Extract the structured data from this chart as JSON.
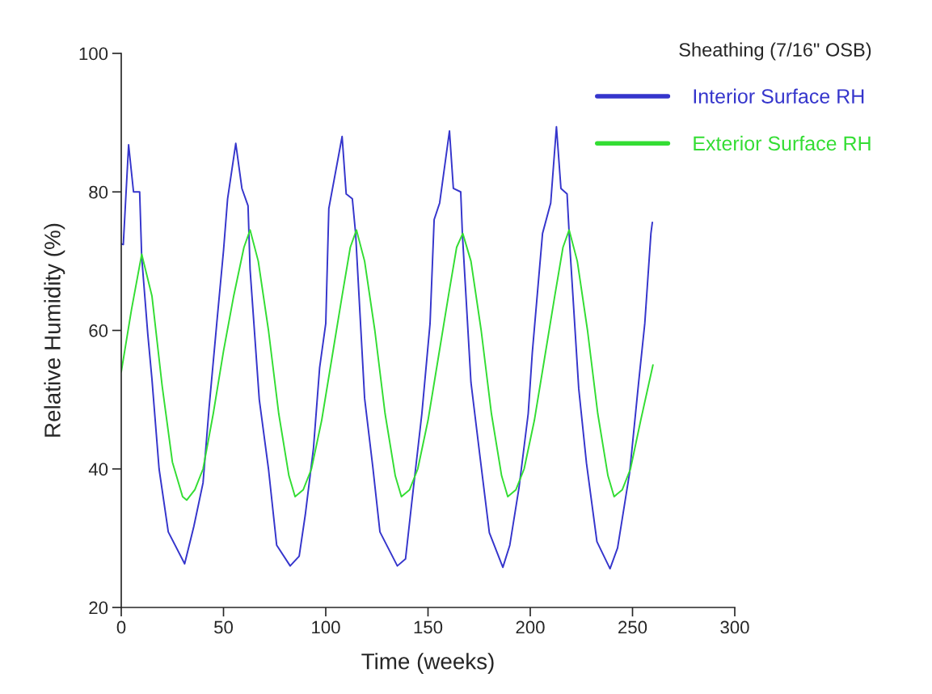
{
  "chart_data": {
    "type": "line",
    "xlabel": "Time (weeks)",
    "ylabel": "Relative Humidity (%)",
    "legend_title": "Sheathing (7/16\" OSB)",
    "xlim": [
      0,
      300
    ],
    "xticks": [
      0,
      50,
      100,
      150,
      200,
      250,
      300
    ],
    "ylim": [
      20,
      100
    ],
    "yticks": [
      20,
      40,
      60,
      80,
      100
    ],
    "grid": false,
    "legend": "top right",
    "series": [
      {
        "name": "Interior Surface RH",
        "color": "#3535cc",
        "x": [
          0,
          1,
          3.6,
          6,
          9,
          10,
          13,
          15,
          18.5,
          23,
          31,
          35.5,
          40,
          43,
          46.7,
          50,
          52,
          56,
          59,
          62,
          63,
          67.5,
          72,
          76,
          82.6,
          87,
          90,
          94,
          97,
          100,
          101.5,
          108,
          110,
          113,
          114.6,
          119,
          123,
          126.5,
          135,
          139,
          142,
          147,
          151,
          153,
          155.7,
          160.5,
          162.4,
          166,
          166.8,
          171,
          175.5,
          180,
          186.6,
          190,
          194.5,
          199,
          201,
          206,
          210,
          212.8,
          215,
          218,
          219.4,
          223.7,
          227.5,
          232.6,
          239,
          242.7,
          248.6,
          253,
          256,
          259,
          259.7
        ],
        "values": [
          72.5,
          72.4,
          86.8,
          80,
          80,
          70.6,
          59.4,
          53,
          40,
          30.9,
          26.3,
          31.7,
          38,
          49,
          61,
          71.5,
          79,
          87,
          80.5,
          78,
          68.8,
          50,
          40,
          29,
          26,
          27.4,
          33.4,
          43,
          54.6,
          61,
          77.6,
          88,
          79.7,
          79,
          74,
          50.2,
          40.3,
          30.9,
          26,
          27,
          35,
          48,
          61,
          76,
          78.4,
          88.8,
          80.5,
          80,
          74,
          52.5,
          41.6,
          30.8,
          25.8,
          29,
          37.3,
          48,
          56.8,
          74,
          78.4,
          89.4,
          80.5,
          79.7,
          71.9,
          51.6,
          40.8,
          29.5,
          25.6,
          28.6,
          39.5,
          52.5,
          61,
          74,
          75.6
        ]
      },
      {
        "name": "Exterior Surface RH",
        "color": "#33dd33",
        "x": [
          0,
          5,
          10,
          15,
          20,
          25,
          30,
          32,
          36,
          40,
          45,
          50,
          55,
          60,
          63,
          67,
          72,
          77,
          82,
          85,
          89,
          93,
          98,
          103,
          108,
          112,
          115,
          119,
          124,
          129,
          134,
          137,
          141,
          145,
          150,
          155,
          160,
          164,
          167,
          171,
          176,
          181,
          186,
          189,
          193,
          197,
          202,
          207,
          212,
          216,
          219,
          223,
          228,
          233,
          238,
          241,
          245,
          249,
          254,
          260
        ],
        "values": [
          54,
          63,
          71,
          65,
          52,
          41,
          36,
          35.5,
          37,
          40,
          48,
          57,
          65,
          72,
          74.5,
          70,
          60,
          48,
          39,
          36,
          37,
          40,
          47,
          56,
          65,
          72,
          74.5,
          70,
          60,
          48,
          39,
          36,
          37,
          40,
          47,
          56,
          65,
          72,
          74,
          70,
          60,
          48,
          39,
          36,
          37,
          40,
          47,
          56,
          65,
          72,
          74.5,
          70,
          60,
          48,
          39,
          36,
          37,
          40,
          47,
          55
        ]
      }
    ]
  }
}
